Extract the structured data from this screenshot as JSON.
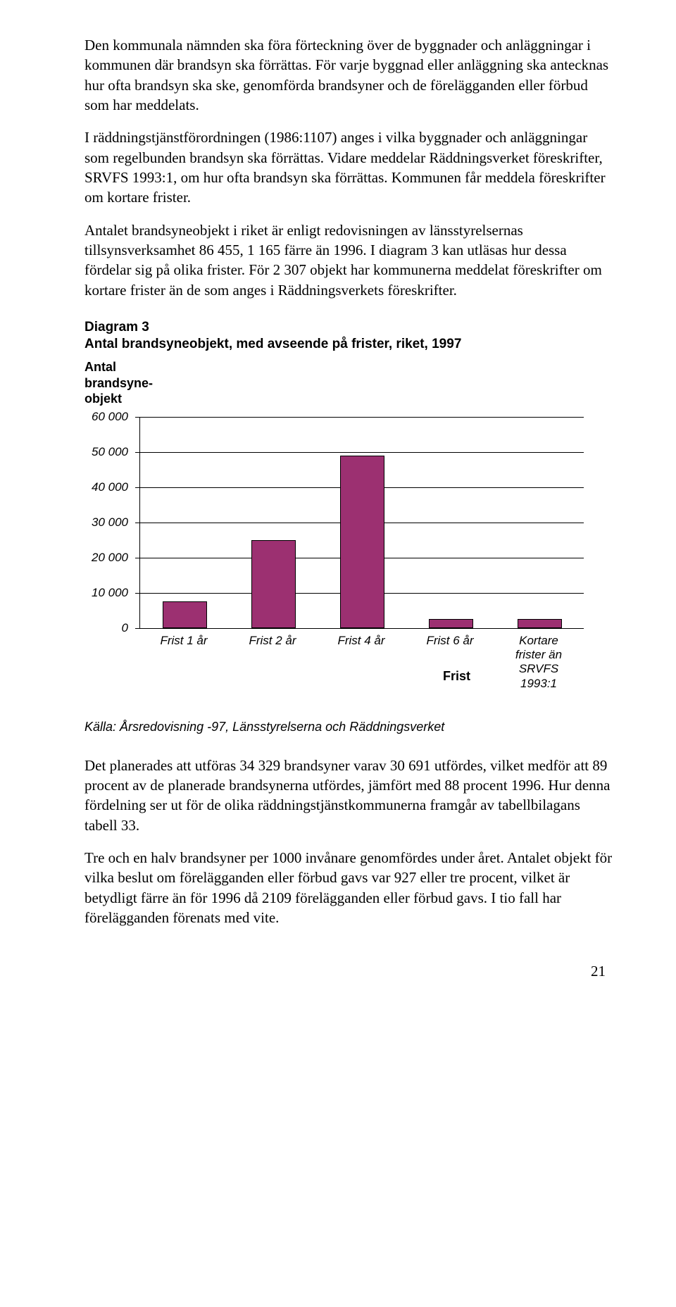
{
  "paragraphs": {
    "p1": "Den kommunala nämnden ska föra förteckning över de byggnader och anläggningar i kommunen där brandsyn ska förrättas. För varje byggnad eller anläggning ska antecknas hur ofta brandsyn ska ske, genomförda brandsyner och de förelägganden eller förbud som har meddelats.",
    "p2": "I räddningstjänstförordningen (1986:1107) anges i vilka byggnader och anläggningar som regelbunden brandsyn ska förrättas. Vidare meddelar Räddningsverket föreskrifter, SRVFS 1993:1, om hur ofta brandsyn ska förrättas. Kommunen får meddela föreskrifter om kortare frister.",
    "p3": "Antalet brandsyneobjekt i riket är enligt redovisningen av länsstyrelsernas tillsynsverksamhet 86 455, 1 165 färre än 1996. I diagram 3 kan utläsas hur dessa fördelar sig på olika frister. För 2 307 objekt har kommunerna meddelat föreskrifter om kortare frister än de som anges i Räddningsverkets föreskrifter.",
    "p4": "Det planerades att utföras 34 329 brandsyner varav 30 691 utfördes, vilket medför att 89 procent av de planerade brandsynerna utfördes, jämfört med 88 procent 1996. Hur denna fördelning ser ut för de olika räddningstjänstkommunerna framgår av tabellbilagans tabell 33.",
    "p5": "Tre och en halv brandsyner per 1000 invånare genomfördes under året. Antalet objekt för vilka beslut om förelägganden eller förbud gavs var 927 eller tre procent, vilket är betydligt färre än för 1996 då 2109 förelägganden eller förbud gavs. I tio fall har förelägganden förenats med vite."
  },
  "chart": {
    "heading": "Diagram 3",
    "subheading": "Antal brandsyneobjekt, med avseende på frister, riket, 1997",
    "y_axis_label": "Antal\nbrandsyne-\nobjekt",
    "x_axis_label": "Frist",
    "source": "Källa: Årsredovisning -97, Länsstyrelserna och Räddningsverket",
    "ylim": [
      0,
      60000
    ],
    "ytick_step": 10000,
    "yticks": [
      "0",
      "10 000",
      "20 000",
      "30 000",
      "40 000",
      "50 000",
      "60 000"
    ],
    "categories": [
      "Frist 1 år",
      "Frist 2 år",
      "Frist 4 år",
      "Frist 6 år",
      "Kortare\nfrister än\nSRVFS\n1993:1"
    ],
    "values": [
      7500,
      25000,
      49000,
      2500,
      2500
    ],
    "bar_color": "#9c3071",
    "bar_border": "#000000",
    "grid_color": "#000000",
    "background": "#ffffff",
    "bar_width_pct": 10,
    "slot_width_pct": 20
  },
  "page_number": "21"
}
